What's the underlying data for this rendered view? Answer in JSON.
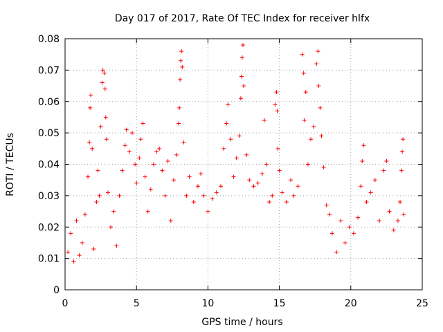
{
  "chart_data": {
    "type": "scatter",
    "title": "Day 017 of 2017, Rate Of TEC Index for receiver hlfx",
    "xlabel": "GPS time / hours",
    "ylabel": "ROTI / TECUs",
    "xlim": [
      0,
      25
    ],
    "ylim": [
      0,
      0.08
    ],
    "xticks": [
      0,
      5,
      10,
      15,
      20,
      25
    ],
    "yticks": [
      0,
      0.01,
      0.02,
      0.03,
      0.04,
      0.05,
      0.06,
      0.07,
      0.08
    ],
    "xtick_labels": [
      "0",
      "5",
      "10",
      "15",
      "20",
      "25"
    ],
    "ytick_labels": [
      "0",
      "0.01",
      "0.02",
      "0.03",
      "0.04",
      "0.05",
      "0.06",
      "0.07",
      "0.08"
    ],
    "grid": true,
    "marker": "+",
    "series": [
      {
        "name": "ROTI",
        "color": "#ff0000",
        "points": [
          [
            0.2,
            0.012
          ],
          [
            0.4,
            0.018
          ],
          [
            0.6,
            0.009
          ],
          [
            0.8,
            0.022
          ],
          [
            1.0,
            0.011
          ],
          [
            1.2,
            0.015
          ],
          [
            1.4,
            0.024
          ],
          [
            1.6,
            0.036
          ],
          [
            1.7,
            0.047
          ],
          [
            1.75,
            0.058
          ],
          [
            1.8,
            0.062
          ],
          [
            1.9,
            0.045
          ],
          [
            2.0,
            0.013
          ],
          [
            2.2,
            0.028
          ],
          [
            2.3,
            0.038
          ],
          [
            2.4,
            0.03
          ],
          [
            2.5,
            0.052
          ],
          [
            2.6,
            0.066
          ],
          [
            2.65,
            0.07
          ],
          [
            2.75,
            0.069
          ],
          [
            2.8,
            0.064
          ],
          [
            2.85,
            0.055
          ],
          [
            2.9,
            0.048
          ],
          [
            3.0,
            0.031
          ],
          [
            3.2,
            0.02
          ],
          [
            3.4,
            0.025
          ],
          [
            3.6,
            0.014
          ],
          [
            3.8,
            0.03
          ],
          [
            4.0,
            0.038
          ],
          [
            4.2,
            0.046
          ],
          [
            4.3,
            0.051
          ],
          [
            4.5,
            0.044
          ],
          [
            4.7,
            0.05
          ],
          [
            4.9,
            0.04
          ],
          [
            5.0,
            0.034
          ],
          [
            5.2,
            0.042
          ],
          [
            5.3,
            0.048
          ],
          [
            5.45,
            0.053
          ],
          [
            5.6,
            0.036
          ],
          [
            5.8,
            0.025
          ],
          [
            6.0,
            0.032
          ],
          [
            6.2,
            0.04
          ],
          [
            6.4,
            0.044
          ],
          [
            6.6,
            0.045
          ],
          [
            6.8,
            0.038
          ],
          [
            7.0,
            0.03
          ],
          [
            7.2,
            0.041
          ],
          [
            7.4,
            0.022
          ],
          [
            7.6,
            0.035
          ],
          [
            7.8,
            0.043
          ],
          [
            7.95,
            0.053
          ],
          [
            8.0,
            0.058
          ],
          [
            8.05,
            0.067
          ],
          [
            8.1,
            0.073
          ],
          [
            8.15,
            0.076
          ],
          [
            8.2,
            0.071
          ],
          [
            8.3,
            0.047
          ],
          [
            8.5,
            0.03
          ],
          [
            8.7,
            0.036
          ],
          [
            9.0,
            0.028
          ],
          [
            9.3,
            0.033
          ],
          [
            9.5,
            0.037
          ],
          [
            9.7,
            0.03
          ],
          [
            10.0,
            0.025
          ],
          [
            10.3,
            0.029
          ],
          [
            10.6,
            0.031
          ],
          [
            10.9,
            0.033
          ],
          [
            11.1,
            0.045
          ],
          [
            11.3,
            0.053
          ],
          [
            11.4,
            0.059
          ],
          [
            11.6,
            0.048
          ],
          [
            11.8,
            0.036
          ],
          [
            12.0,
            0.042
          ],
          [
            12.2,
            0.049
          ],
          [
            12.3,
            0.061
          ],
          [
            12.35,
            0.068
          ],
          [
            12.4,
            0.074
          ],
          [
            12.45,
            0.078
          ],
          [
            12.5,
            0.065
          ],
          [
            12.7,
            0.043
          ],
          [
            12.9,
            0.035
          ],
          [
            13.2,
            0.033
          ],
          [
            13.5,
            0.034
          ],
          [
            13.8,
            0.037
          ],
          [
            13.95,
            0.054
          ],
          [
            14.1,
            0.04
          ],
          [
            14.3,
            0.028
          ],
          [
            14.5,
            0.03
          ],
          [
            14.7,
            0.059
          ],
          [
            14.8,
            0.063
          ],
          [
            14.85,
            0.057
          ],
          [
            14.9,
            0.045
          ],
          [
            15.0,
            0.038
          ],
          [
            15.2,
            0.031
          ],
          [
            15.5,
            0.028
          ],
          [
            15.8,
            0.035
          ],
          [
            16.0,
            0.03
          ],
          [
            16.3,
            0.033
          ],
          [
            16.6,
            0.075
          ],
          [
            16.7,
            0.069
          ],
          [
            16.75,
            0.054
          ],
          [
            16.85,
            0.063
          ],
          [
            17.0,
            0.04
          ],
          [
            17.2,
            0.048
          ],
          [
            17.4,
            0.052
          ],
          [
            17.6,
            0.072
          ],
          [
            17.7,
            0.076
          ],
          [
            17.75,
            0.065
          ],
          [
            17.85,
            0.058
          ],
          [
            17.95,
            0.049
          ],
          [
            18.1,
            0.039
          ],
          [
            18.3,
            0.027
          ],
          [
            18.5,
            0.024
          ],
          [
            18.7,
            0.018
          ],
          [
            19.0,
            0.012
          ],
          [
            19.3,
            0.022
          ],
          [
            19.6,
            0.015
          ],
          [
            19.9,
            0.02
          ],
          [
            20.2,
            0.018
          ],
          [
            20.5,
            0.023
          ],
          [
            20.7,
            0.033
          ],
          [
            20.8,
            0.041
          ],
          [
            20.9,
            0.046
          ],
          [
            21.1,
            0.028
          ],
          [
            21.4,
            0.031
          ],
          [
            21.7,
            0.035
          ],
          [
            22.0,
            0.022
          ],
          [
            22.3,
            0.038
          ],
          [
            22.5,
            0.041
          ],
          [
            22.7,
            0.025
          ],
          [
            23.0,
            0.019
          ],
          [
            23.3,
            0.022
          ],
          [
            23.45,
            0.028
          ],
          [
            23.55,
            0.038
          ],
          [
            23.6,
            0.044
          ],
          [
            23.65,
            0.048
          ],
          [
            23.7,
            0.024
          ]
        ]
      }
    ]
  }
}
